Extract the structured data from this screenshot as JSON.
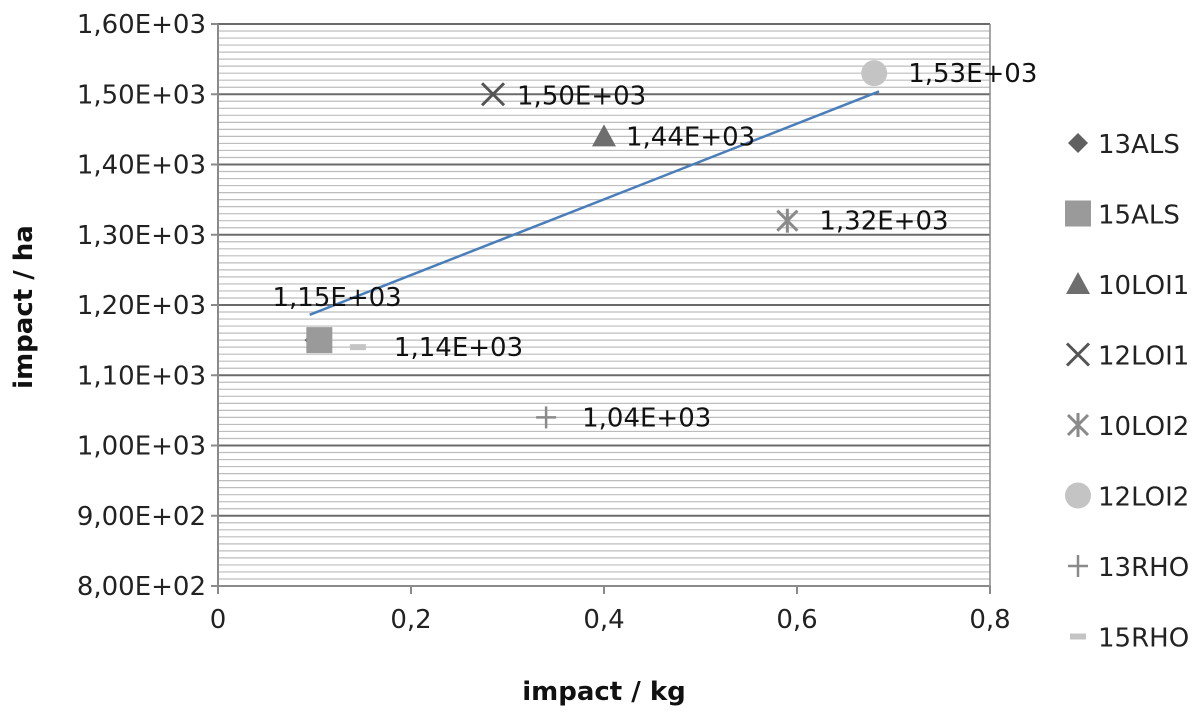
{
  "chart_data": {
    "type": "scatter",
    "xlabel": "impact / kg",
    "ylabel": "impact / ha",
    "xlim": [
      0,
      0.8
    ],
    "ylim": [
      800,
      1600
    ],
    "x_ticks": [
      0,
      0.2,
      0.4,
      0.6,
      0.8
    ],
    "x_tick_labels": [
      "0",
      "0,2",
      "0,4",
      "0,6",
      "0,8"
    ],
    "y_ticks": [
      800,
      900,
      1000,
      1100,
      1200,
      1300,
      1400,
      1500,
      1600
    ],
    "y_tick_labels": [
      "8,00E+02",
      "9,00E+02",
      "1,00E+03",
      "1,10E+03",
      "1,20E+03",
      "1,30E+03",
      "1,40E+03",
      "1,50E+03",
      "1,60E+03"
    ],
    "grid": "horizontal",
    "legend_position": "right",
    "series": [
      {
        "name": "13ALS",
        "marker": "diamond",
        "color": "#606060",
        "x": 0.1,
        "y": 1150,
        "label": "1,15E+03"
      },
      {
        "name": "15ALS",
        "marker": "square",
        "color": "#9a9a9a",
        "x": 0.105,
        "y": 1150,
        "label": ""
      },
      {
        "name": "10LOI1",
        "marker": "triangle",
        "color": "#6e6e6e",
        "x": 0.4,
        "y": 1440,
        "label": "1,44E+03"
      },
      {
        "name": "12LOI1",
        "marker": "x",
        "color": "#555555",
        "x": 0.285,
        "y": 1500,
        "label": "1,50E+03"
      },
      {
        "name": "10LOI2",
        "marker": "asterisk",
        "color": "#8a8a8a",
        "x": 0.59,
        "y": 1320,
        "label": "1,32E+03"
      },
      {
        "name": "12LOI2",
        "marker": "circle",
        "color": "#c4c4c4",
        "x": 0.68,
        "y": 1530,
        "label": "1,53E+03"
      },
      {
        "name": "13RHO",
        "marker": "plus",
        "color": "#8a8a8a",
        "x": 0.34,
        "y": 1040,
        "label": "1,04E+03"
      },
      {
        "name": "15RHO",
        "marker": "dash",
        "color": "#c4c4c4",
        "x": 0.145,
        "y": 1140,
        "label": "1,14E+03"
      }
    ],
    "trendline": {
      "type": "linear",
      "color": "#4a7ebb",
      "x": [
        0.095,
        0.685
      ],
      "y": [
        1186,
        1504
      ]
    }
  }
}
